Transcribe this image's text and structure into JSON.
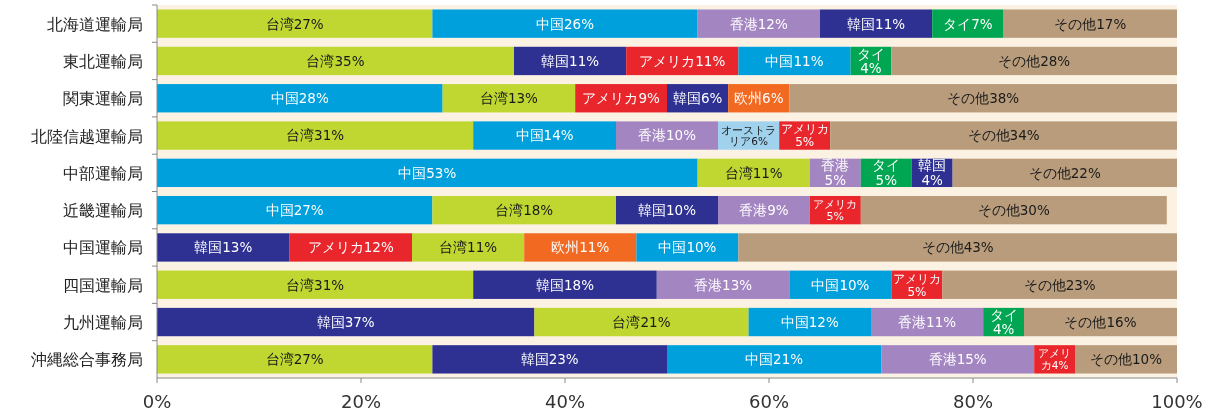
{
  "chart_data": {
    "type": "bar",
    "orientation": "horizontal",
    "stacked": true,
    "categories": [
      "北海道運輸局",
      "東北運輸局",
      "関東運輸局",
      "北陸信越運輸局",
      "中部運輸局",
      "近畿運輸局",
      "中国運輸局",
      "四国運輸局",
      "九州運輸局",
      "沖縄総合事務局"
    ],
    "xlim": [
      0,
      100
    ],
    "xticks": [
      {
        "value": 0,
        "label": "0%"
      },
      {
        "value": 20,
        "label": "20%"
      },
      {
        "value": 40,
        "label": "40%"
      },
      {
        "value": 60,
        "label": "60%"
      },
      {
        "value": 80,
        "label": "80%"
      },
      {
        "value": 100,
        "label": "100%"
      }
    ],
    "series": [
      {
        "values": [
          27,
          35,
          28,
          31,
          53,
          27,
          13,
          31,
          37,
          27
        ],
        "colors": [
          "#bfd730",
          "#bfd730",
          "#00a0dc",
          "#bfd730",
          "#00a0dc",
          "#00a0dc",
          "#2e3192",
          "#bfd730",
          "#2e3192",
          "#bfd730"
        ],
        "value_labels": [
          "台湾27%",
          "台湾35%",
          "中国28%",
          "台湾31%",
          "中国53%",
          "中国27%",
          "韓国13%",
          "台湾31%",
          "韓国37%",
          "台湾27%"
        ]
      },
      {
        "values": [
          26,
          11,
          13,
          14,
          11,
          18,
          12,
          18,
          21,
          23
        ],
        "colors": [
          "#00a0dc",
          "#2e3192",
          "#bfd730",
          "#00a0dc",
          "#bfd730",
          "#bfd730",
          "#e8262b",
          "#2e3192",
          "#bfd730",
          "#2e3192"
        ],
        "value_labels": [
          "中国26%",
          "韓国11%",
          "台湾13%",
          "中国14%",
          "台湾11%",
          "台湾18%",
          "アメリカ12%",
          "韓国18%",
          "台湾21%",
          "韓国23%"
        ]
      },
      {
        "values": [
          12,
          11,
          9,
          10,
          5,
          10,
          11,
          13,
          12,
          21
        ],
        "colors": [
          "#a385c2",
          "#e8262b",
          "#e8262b",
          "#a385c2",
          "#a385c2",
          "#2e3192",
          "#bfd730",
          "#a385c2",
          "#00a0dc",
          "#00a0dc"
        ],
        "value_labels": [
          "香港12%",
          "アメリカ11%",
          "アメリカ9%",
          "香港10%",
          "香港5%",
          "韓国10%",
          "台湾11%",
          "香港13%",
          "中国12%",
          "中国21%"
        ]
      },
      {
        "values": [
          11,
          11,
          6,
          6,
          5,
          9,
          11,
          10,
          11,
          15
        ],
        "colors": [
          "#2e3192",
          "#00a0dc",
          "#2e3192",
          "#a0d2ee",
          "#00a651",
          "#a385c2",
          "#f26a22",
          "#00a0dc",
          "#a385c2",
          "#a385c2"
        ],
        "value_labels": [
          "韓国11%",
          "中国11%",
          "韓国6%",
          "オーストラリア6%",
          "タイ5%",
          "香港9%",
          "欧州11%",
          "中国10%",
          "香港11%",
          "香港15%"
        ]
      },
      {
        "values": [
          7,
          4,
          6,
          5,
          4,
          5,
          10,
          5,
          4,
          4
        ],
        "colors": [
          "#00a651",
          "#00a651",
          "#f26a22",
          "#e8262b",
          "#2e3192",
          "#e8262b",
          "#00a0dc",
          "#e8262b",
          "#00a651",
          "#e8262b"
        ],
        "value_labels": [
          "タイ7%",
          "タイ4%",
          "欧州6%",
          "アメリカ5%",
          "韓国4%",
          "アメリカ5%",
          "中国10%",
          "アメリカ5%",
          "タイ4%",
          "アメリカ4%"
        ]
      },
      {
        "values": [
          17,
          28,
          38,
          34,
          22,
          30,
          43,
          23,
          15,
          10
        ],
        "colors": [
          "#b89c7c",
          "#b89c7c",
          "#b89c7c",
          "#b89c7c",
          "#b89c7c",
          "#b89c7c",
          "#b89c7c",
          "#b89c7c",
          "#b89c7c",
          "#b89c7c"
        ],
        "value_labels": [
          "その他17%",
          "その他28%",
          "その他38%",
          "その他34%",
          "その他22%",
          "その他30%",
          "その他43%",
          "その他23%",
          "その他16%",
          "その他10%"
        ]
      }
    ]
  }
}
